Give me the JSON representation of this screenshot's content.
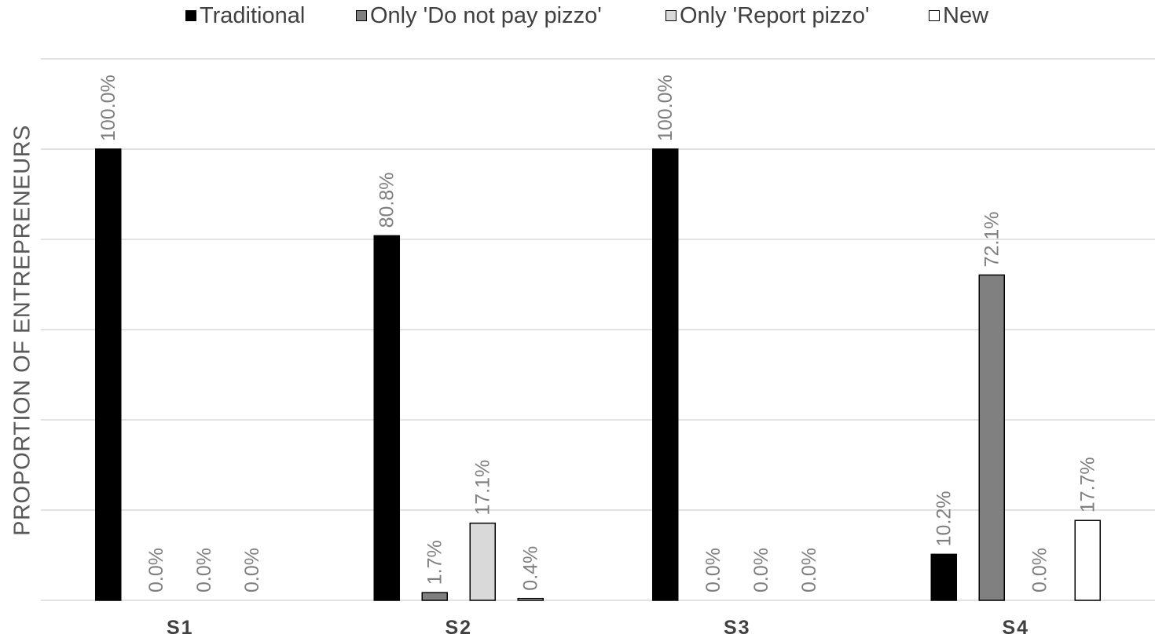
{
  "chart_data": {
    "type": "bar",
    "title": "",
    "xlabel": "",
    "ylabel": "PROPORTION OF ENTREPRENEURS",
    "categories": [
      "S1",
      "S2",
      "S3",
      "S4"
    ],
    "ylim": [
      0,
      1.2
    ],
    "grid": true,
    "legend_position": "top",
    "series": [
      {
        "name": "Traditional",
        "values": [
          1.0,
          0.808,
          1.0,
          0.102
        ],
        "labels": [
          "100.0%",
          "80.8%",
          "100.0%",
          "10.2%"
        ],
        "color": "#000000"
      },
      {
        "name": "Only 'Do not pay pizzo'",
        "values": [
          0.0,
          0.017,
          0.0,
          0.721
        ],
        "labels": [
          "0.0%",
          "1.7%",
          "0.0%",
          "72.1%"
        ],
        "color": "#808080"
      },
      {
        "name": "Only 'Report pizzo'",
        "values": [
          0.0,
          0.171,
          0.0,
          0.0
        ],
        "labels": [
          "0.0%",
          "17.1%",
          "0.0%",
          "0.0%"
        ],
        "color": "#d9d9d9"
      },
      {
        "name": "New",
        "values": [
          0.0,
          0.004,
          0.0,
          0.177
        ],
        "labels": [
          "0.0%",
          "0.4%",
          "0.0%",
          "17.7%"
        ],
        "color": "#ffffff"
      }
    ]
  }
}
